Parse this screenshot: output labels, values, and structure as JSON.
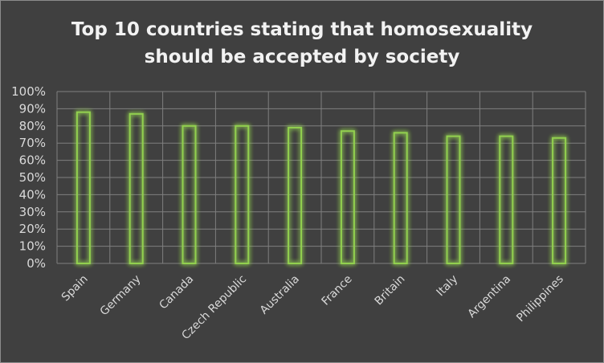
{
  "chart_data": {
    "type": "bar",
    "title_lines": [
      "Top 10 countries stating that homosexuality",
      "should be accepted by society"
    ],
    "categories": [
      "Spain",
      "Germany",
      "Canada",
      "Czech Republic",
      "Australia",
      "France",
      "Britain",
      "Italy",
      "Argentina",
      "Philippines"
    ],
    "values": [
      88,
      87,
      80,
      80,
      79,
      77,
      76,
      74,
      74,
      73
    ],
    "ylim": [
      0,
      100
    ],
    "yticks": [
      "0%",
      "10%",
      "20%",
      "30%",
      "40%",
      "50%",
      "60%",
      "70%",
      "80%",
      "90%",
      "100%"
    ],
    "grid": true,
    "colors": {
      "background": "#404040",
      "grid": "#7f7f7f",
      "bar_outline": "#92d050",
      "bar_glow": "#6fa82f",
      "text": "#d9d9d9",
      "title": "#f2f2f2"
    }
  }
}
